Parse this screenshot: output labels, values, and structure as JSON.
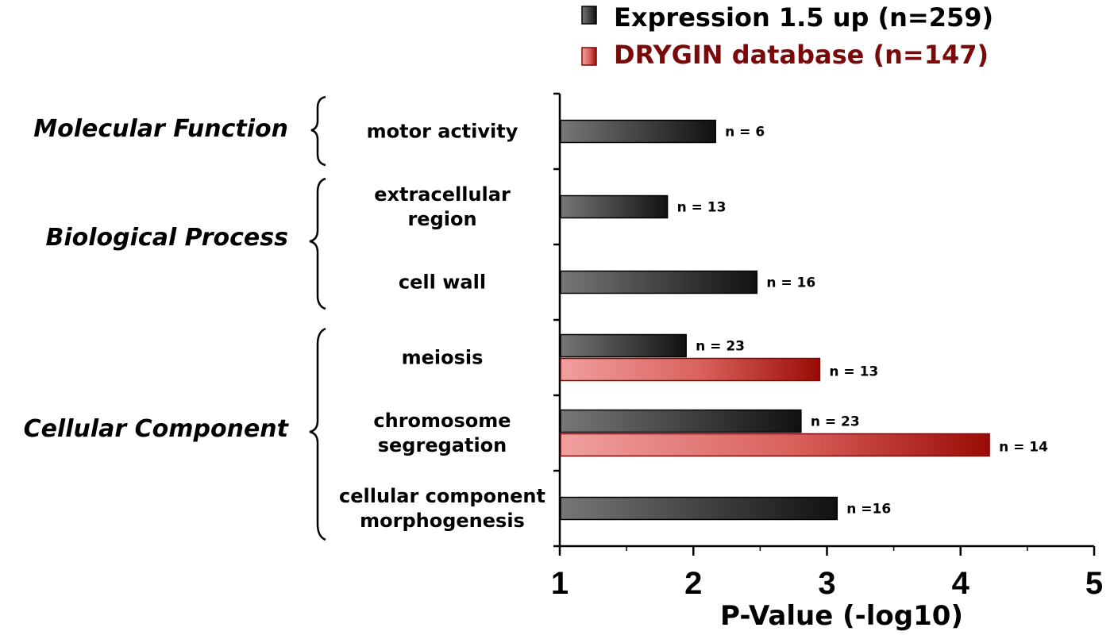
{
  "colors": {
    "expression": "#3a3a3a",
    "drygin": "#c0392b",
    "drygin_text": "#7a0a0a"
  },
  "chart_data": {
    "type": "bar",
    "orientation": "horizontal",
    "xlabel": "P-Value (-log10)",
    "xlim": [
      1,
      5
    ],
    "xticks": [
      1,
      2,
      3,
      4,
      5
    ],
    "legend": {
      "placement": "top-right",
      "entries": [
        {
          "name": "Expression 1.5 up (n=259)",
          "color": "#3a3a3a"
        },
        {
          "name": "DRYGIN database (n=147)",
          "color": "#c0392b"
        }
      ]
    },
    "groups": [
      {
        "label": "Molecular Function",
        "categories": [
          "motor activity"
        ]
      },
      {
        "label": "Biological Process",
        "categories": [
          "extracellular region",
          "cell wall"
        ]
      },
      {
        "label": "Cellular Component",
        "categories": [
          "meiosis",
          "chromosome segregation",
          "cellular component morphogenesis"
        ]
      }
    ],
    "categories": [
      {
        "label": "motor activity",
        "lines": [
          "motor activity"
        ]
      },
      {
        "label": "extracellular region",
        "lines": [
          "extracellular",
          "region"
        ]
      },
      {
        "label": "cell wall",
        "lines": [
          "cell wall"
        ]
      },
      {
        "label": "meiosis",
        "lines": [
          "meiosis"
        ]
      },
      {
        "label": "chromosome segregation",
        "lines": [
          "chromosome",
          "segregation"
        ]
      },
      {
        "label": "cellular component morphogenesis",
        "lines": [
          "cellular component",
          "morphogenesis"
        ]
      }
    ],
    "series": [
      {
        "name": "Expression 1.5 up (n=259)",
        "values": [
          2.16,
          1.8,
          2.47,
          1.94,
          2.8,
          3.07
        ],
        "labels": [
          "n = 6",
          "n = 13",
          "n = 16",
          "n = 23",
          "n = 23",
          "n =16"
        ]
      },
      {
        "name": "DRYGIN database (n=147)",
        "values": [
          null,
          null,
          null,
          2.94,
          4.21,
          null
        ],
        "labels": [
          null,
          null,
          null,
          "n = 13",
          "n = 14",
          null
        ]
      }
    ]
  }
}
